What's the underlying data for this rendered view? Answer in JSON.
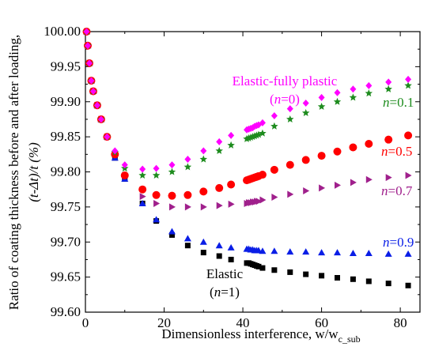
{
  "chart_data": {
    "type": "scatter",
    "xlabel": "Dimensionless interference, w/w",
    "xlabel_sub": "c_sub",
    "ylabel_line1": "Ratio of coating thickness before and after loading,",
    "ylabel_line2": "(t-Δt)/t  (%)",
    "xlim": [
      0,
      85
    ],
    "ylim": [
      99.6,
      100.0
    ],
    "x_ticks": [
      0,
      20,
      40,
      60,
      80
    ],
    "x_tick_labels": [
      "0",
      "20",
      "40",
      "60",
      "80"
    ],
    "y_ticks": [
      99.6,
      99.65,
      99.7,
      99.75,
      99.8,
      99.85,
      99.9,
      99.95,
      100.0
    ],
    "y_tick_labels": [
      "99.60",
      "99.65",
      "99.70",
      "99.75",
      "99.80",
      "99.85",
      "99.90",
      "99.95",
      "100.00"
    ],
    "grid": false,
    "series": [
      {
        "name": "Elastic (n=1)",
        "marker": "square",
        "color": "#000000",
        "x": [
          0.3,
          0.6,
          1,
          1.5,
          2,
          3,
          4,
          5.5,
          7.5,
          10,
          14.5,
          18,
          22,
          26,
          30,
          34,
          37,
          41,
          41.5,
          42,
          42.5,
          43,
          43.5,
          44,
          45,
          48,
          52,
          56,
          60,
          64,
          68,
          72,
          77,
          82
        ],
        "y": [
          100.0,
          99.98,
          99.955,
          99.93,
          99.915,
          99.895,
          99.875,
          99.85,
          99.82,
          99.79,
          99.755,
          99.73,
          99.71,
          99.695,
          99.685,
          99.68,
          99.675,
          99.67,
          99.67,
          99.669,
          99.668,
          99.667,
          99.666,
          99.665,
          99.663,
          99.66,
          99.657,
          99.654,
          99.652,
          99.649,
          99.647,
          99.644,
          99.641,
          99.638
        ]
      },
      {
        "name": "n=0.9",
        "marker": "triangle-up",
        "color": "#0a1ee6",
        "x": [
          0.3,
          0.6,
          1,
          1.5,
          2,
          3,
          4,
          5.5,
          7.5,
          10,
          14.5,
          18,
          22,
          26,
          30,
          34,
          37,
          41,
          41.5,
          42,
          42.5,
          43,
          43.5,
          44,
          45,
          48,
          52,
          56,
          60,
          64,
          68,
          72,
          77,
          82
        ],
        "y": [
          100.0,
          99.98,
          99.955,
          99.93,
          99.915,
          99.895,
          99.875,
          99.85,
          99.82,
          99.79,
          99.755,
          99.732,
          99.715,
          99.705,
          99.7,
          99.695,
          99.692,
          99.69,
          99.69,
          99.689,
          99.689,
          99.688,
          99.688,
          99.688,
          99.687,
          99.687,
          99.686,
          99.686,
          99.685,
          99.685,
          99.684,
          99.684,
          99.683,
          99.683
        ]
      },
      {
        "name": "n=0.7",
        "marker": "triangle-right",
        "color": "#a0208c",
        "x": [
          0.3,
          0.6,
          1,
          1.5,
          2,
          3,
          4,
          5.5,
          7.5,
          10,
          14.5,
          18,
          22,
          26,
          30,
          34,
          37,
          41,
          41.5,
          42,
          42.5,
          43,
          43.5,
          44,
          45,
          48,
          52,
          56,
          60,
          64,
          68,
          72,
          77,
          82
        ],
        "y": [
          100.0,
          99.98,
          99.955,
          99.93,
          99.915,
          99.895,
          99.875,
          99.85,
          99.825,
          99.795,
          99.765,
          99.755,
          99.75,
          99.75,
          99.75,
          99.752,
          99.754,
          99.755,
          99.756,
          99.756,
          99.757,
          99.757,
          99.758,
          99.758,
          99.76,
          99.764,
          99.768,
          99.773,
          99.777,
          99.781,
          99.785,
          99.789,
          99.792,
          99.795
        ]
      },
      {
        "name": "n=0.5",
        "marker": "circle",
        "color": "#ff0000",
        "x": [
          0.3,
          0.6,
          1,
          1.5,
          2,
          3,
          4,
          5.5,
          7.5,
          10,
          14.5,
          18,
          22,
          26,
          30,
          34,
          37,
          41,
          41.5,
          42,
          42.5,
          43,
          43.5,
          44,
          45,
          48,
          52,
          56,
          60,
          64,
          68,
          72,
          77,
          82
        ],
        "y": [
          100.0,
          99.98,
          99.955,
          99.93,
          99.915,
          99.895,
          99.875,
          99.85,
          99.825,
          99.795,
          99.775,
          99.767,
          99.766,
          99.767,
          99.772,
          99.777,
          99.782,
          99.788,
          99.789,
          99.79,
          99.791,
          99.792,
          99.793,
          99.794,
          99.796,
          99.803,
          99.81,
          99.817,
          99.823,
          99.829,
          99.835,
          99.84,
          99.846,
          99.852
        ]
      },
      {
        "name": "n=0.1",
        "marker": "star",
        "color": "#1e8c1e",
        "x": [
          0.3,
          0.6,
          1,
          1.5,
          2,
          3,
          4,
          5.5,
          7.5,
          10,
          14.5,
          18,
          22,
          26,
          30,
          34,
          37,
          41,
          41.5,
          42,
          42.5,
          43,
          43.5,
          44,
          45,
          48,
          52,
          56,
          60,
          64,
          68,
          72,
          77,
          82
        ],
        "y": [
          100.0,
          99.98,
          99.955,
          99.93,
          99.915,
          99.895,
          99.875,
          99.85,
          99.828,
          99.805,
          99.795,
          99.795,
          99.8,
          99.807,
          99.818,
          99.83,
          99.838,
          99.847,
          99.848,
          99.849,
          99.85,
          99.851,
          99.852,
          99.853,
          99.855,
          99.865,
          99.875,
          99.884,
          99.893,
          99.9,
          99.906,
          99.912,
          99.918,
          99.923
        ]
      },
      {
        "name": "Elastic-fully plastic (n=0)",
        "marker": "diamond",
        "color": "#ff00ff",
        "x": [
          0.3,
          0.6,
          1,
          1.5,
          2,
          3,
          4,
          5.5,
          7.5,
          10,
          14.5,
          18,
          22,
          26,
          30,
          34,
          37,
          41,
          41.5,
          42,
          42.5,
          43,
          43.5,
          44,
          45,
          48,
          52,
          56,
          60,
          64,
          68,
          72,
          77,
          82
        ],
        "y": [
          100.0,
          99.98,
          99.955,
          99.93,
          99.915,
          99.895,
          99.875,
          99.85,
          99.83,
          99.81,
          99.804,
          99.805,
          99.81,
          99.818,
          99.83,
          99.843,
          99.852,
          99.86,
          99.861,
          99.862,
          99.863,
          99.865,
          99.866,
          99.867,
          99.87,
          99.88,
          99.89,
          99.898,
          99.906,
          99.913,
          99.918,
          99.923,
          99.928,
          99.932
        ]
      }
    ],
    "annotations": [
      {
        "id": "n0",
        "line1": "Elastic-fully plastic",
        "line2_pre": "(",
        "line2_n": "n",
        "line2_post": "=0)",
        "color": "#ff00ff"
      },
      {
        "id": "n01",
        "n": "n",
        "eq": "=0.1",
        "color": "#1e8c1e"
      },
      {
        "id": "n05",
        "n": "n",
        "eq": "=0.5",
        "color": "#ff0000"
      },
      {
        "id": "n07",
        "n": "n",
        "eq": "=0.7",
        "color": "#a0208c"
      },
      {
        "id": "n09",
        "n": "n",
        "eq": "=0.9",
        "color": "#0a1ee6"
      },
      {
        "id": "n1",
        "line1": "Elastic",
        "line2_pre": "(",
        "line2_n": "n",
        "line2_post": "=1)",
        "color": "#000000"
      }
    ]
  }
}
